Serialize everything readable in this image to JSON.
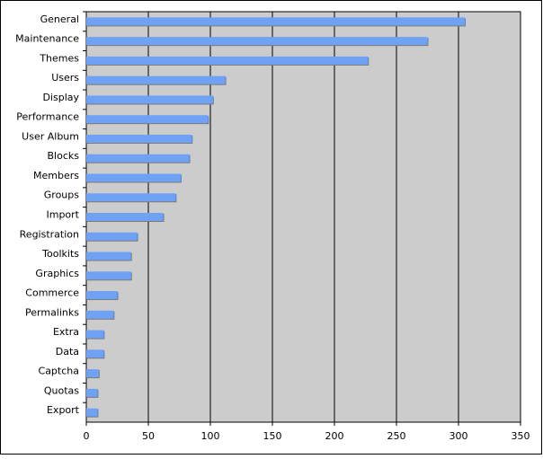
{
  "chart_data": {
    "type": "hbar",
    "categories": [
      "General",
      "Maintenance",
      "Themes",
      "Users",
      "Display",
      "Performance",
      "User Album",
      "Blocks",
      "Members",
      "Groups",
      "Import",
      "Registration",
      "Toolkits",
      "Graphics",
      "Commerce",
      "Permalinks",
      "Extra",
      "Data",
      "Captcha",
      "Quotas",
      "Export"
    ],
    "values": [
      305,
      275,
      227,
      112,
      102,
      98,
      85,
      83,
      76,
      72,
      62,
      41,
      36,
      36,
      25,
      22,
      14,
      14,
      10,
      9,
      9
    ],
    "color": "#6fa2f5",
    "xlim": [
      0,
      350
    ],
    "xticks": [
      0,
      50,
      100,
      150,
      200,
      250,
      300,
      350
    ],
    "grid": true
  }
}
